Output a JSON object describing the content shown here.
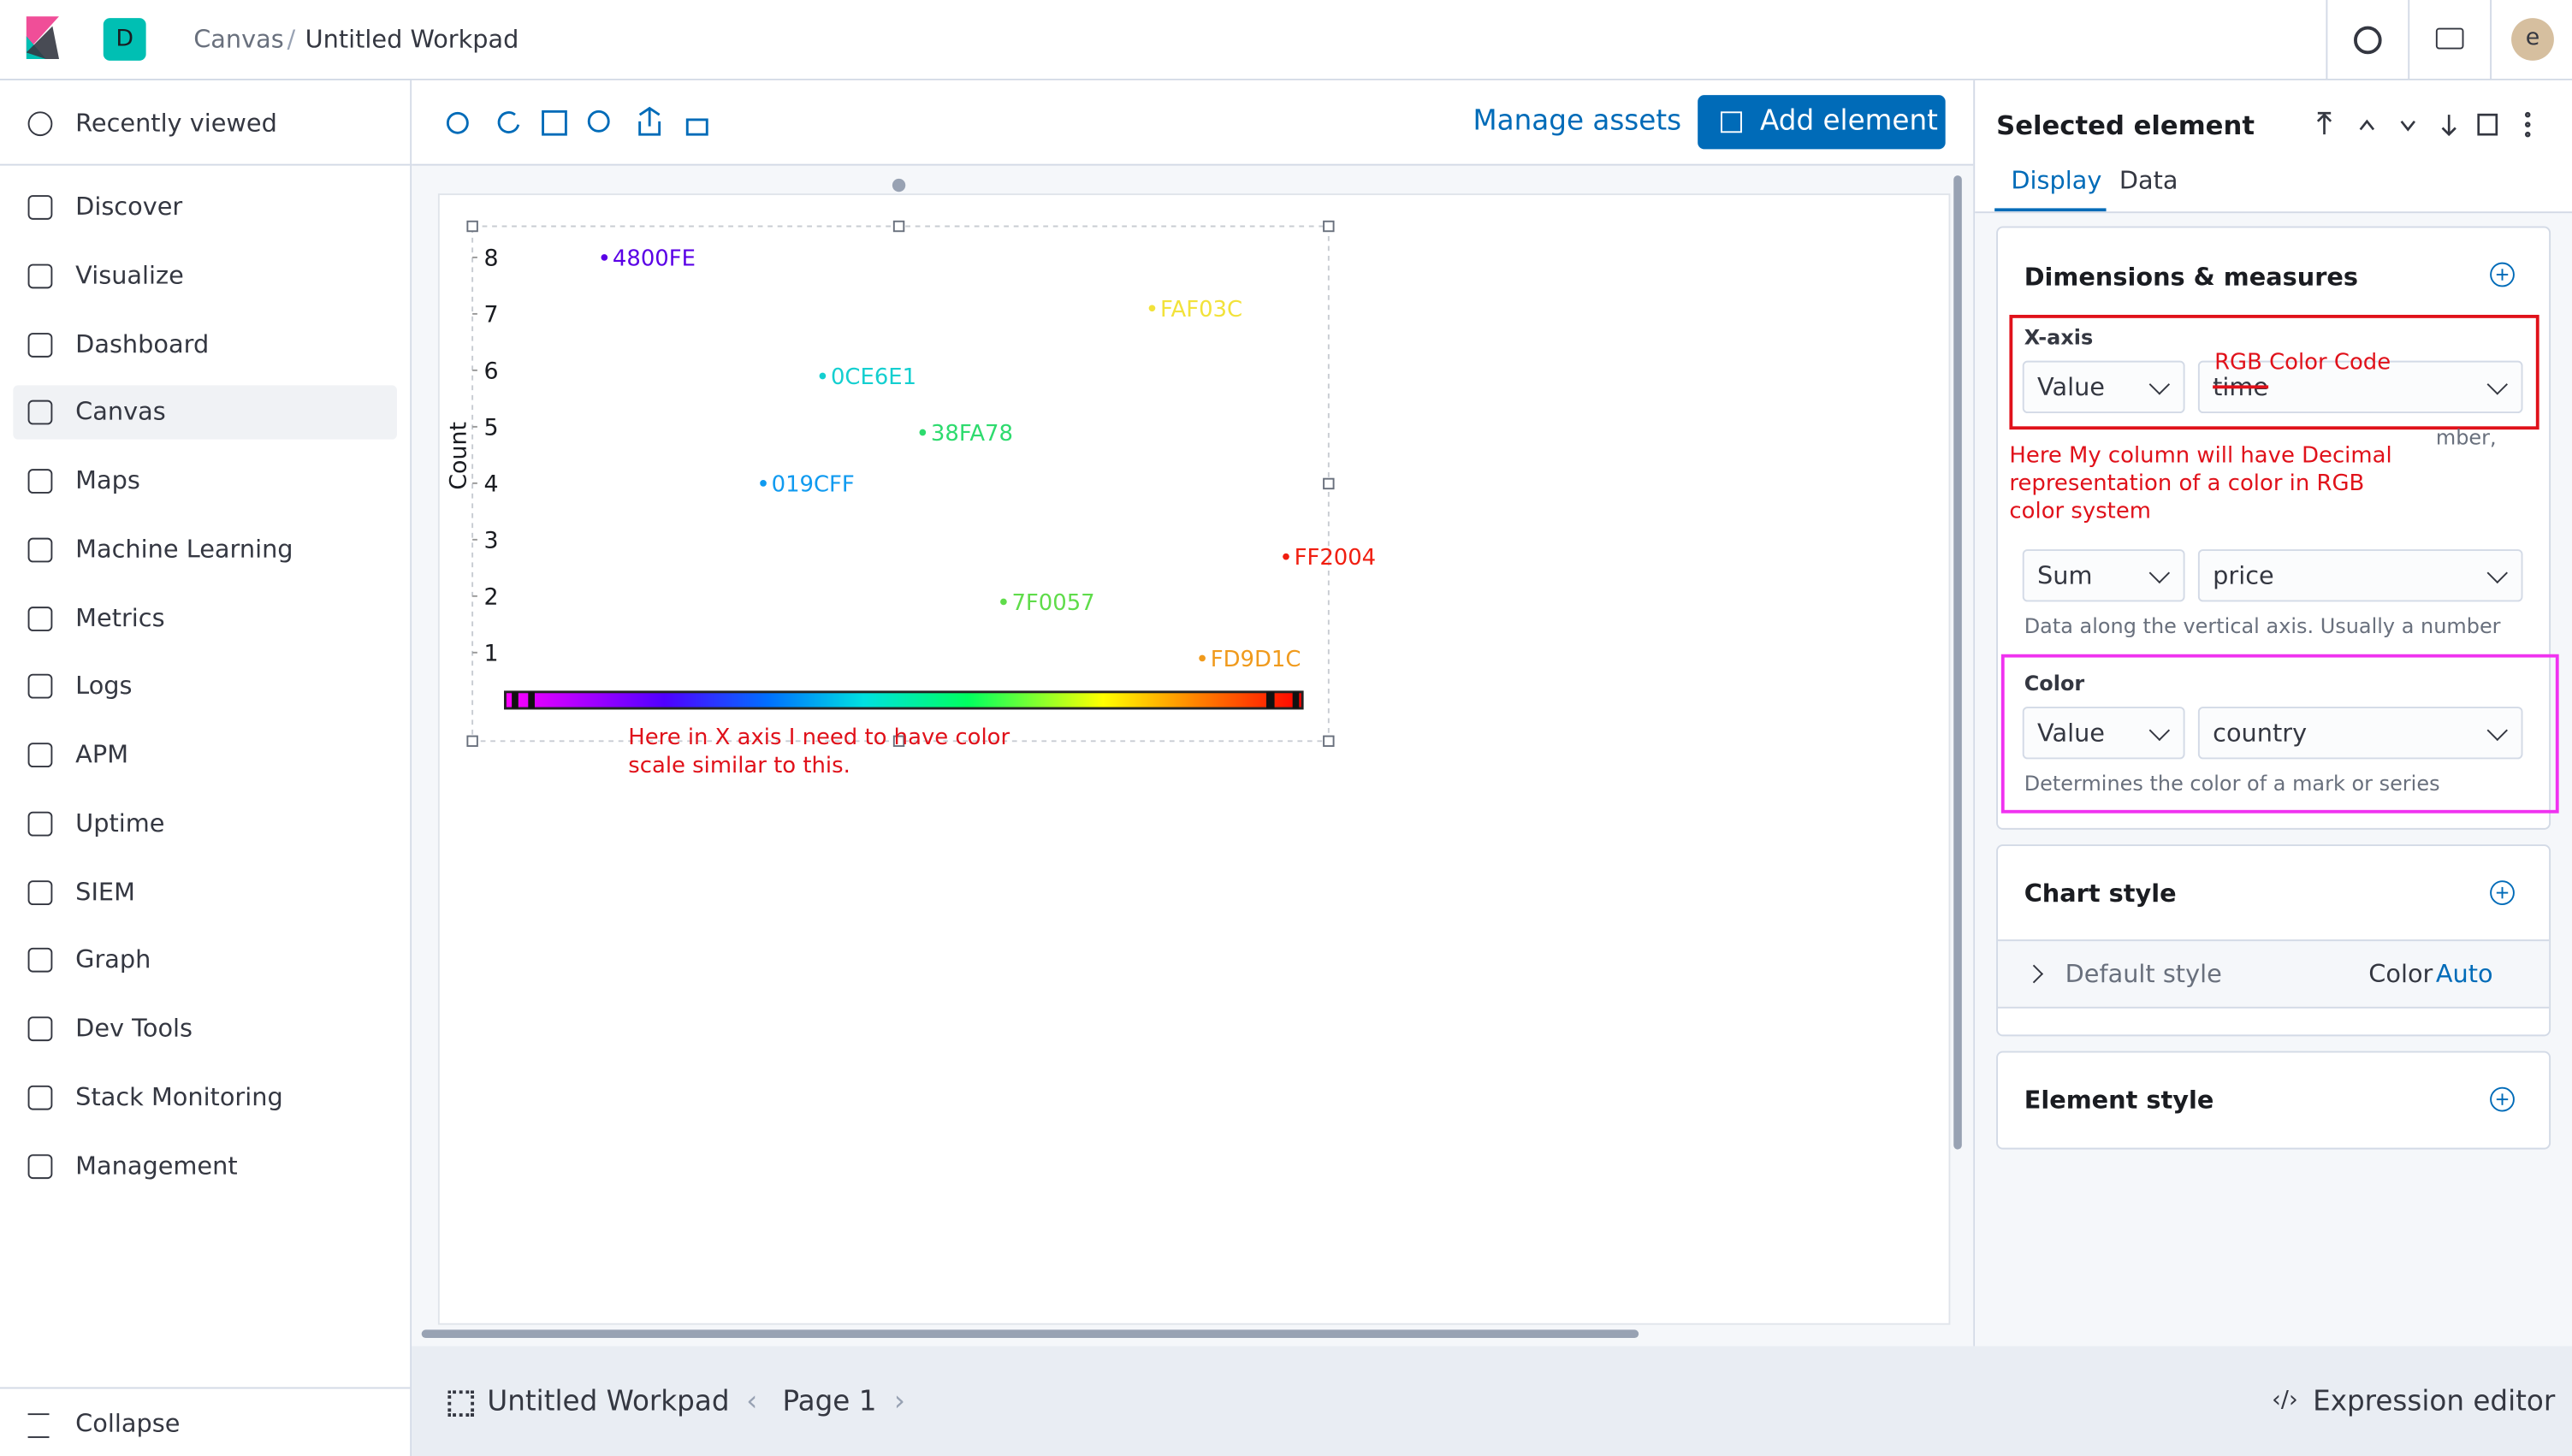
{
  "header": {
    "badge": "D",
    "breadcrumbs": [
      "Canvas",
      "Untitled Workpad"
    ],
    "avatar": "e"
  },
  "nav": {
    "recent": "Recently viewed",
    "items": [
      "Discover",
      "Visualize",
      "Dashboard",
      "Canvas",
      "Maps",
      "Machine Learning",
      "Metrics",
      "Logs",
      "APM",
      "Uptime",
      "SIEM",
      "Graph",
      "Dev Tools",
      "Stack Monitoring",
      "Management"
    ],
    "collapse": "Collapse"
  },
  "toolbar": {
    "manage": "Manage assets",
    "add": "Add element"
  },
  "chart_data": {
    "type": "scatter",
    "ylabel": "Count",
    "ylim": [
      0.5,
      8.3
    ],
    "yticks": [
      1,
      2,
      3,
      4,
      5,
      6,
      7,
      8
    ],
    "points": [
      {
        "label": "4800FE",
        "y": 8,
        "color": "#5a00e6"
      },
      {
        "label": "FAF03C",
        "y": 7.1,
        "color": "#f2e23a"
      },
      {
        "label": "0CE6E1",
        "y": 5.9,
        "color": "#14cfd0"
      },
      {
        "label": "38FA78",
        "y": 4.9,
        "color": "#2edb6e"
      },
      {
        "label": "019CFF",
        "y": 4,
        "color": "#0f9af0"
      },
      {
        "label": "FF2004",
        "y": 2.7,
        "color": "#f01e10"
      },
      {
        "label": "7F0057",
        "y": 1.9,
        "color": "#5fdc4a"
      },
      {
        "label": "FD9D1C",
        "y": 0.9,
        "color": "#f09a1c"
      }
    ],
    "annotation": "Here in X axis I need to have color scale similar to this."
  },
  "panel": {
    "title": "Selected element",
    "tabs": [
      "Display",
      "Data"
    ],
    "dimensions": {
      "title": "Dimensions & measures",
      "xaxis": "X-axis",
      "xfunc": "Value",
      "xfield": "time",
      "xnote": "RGB Color Code",
      "fragment": "mber,",
      "note": "Here My column will have Decimal representation of a color in RGB color system",
      "yfunc": "Sum",
      "yfield": "price",
      "yhelp": "Data along the vertical axis. Usually a number",
      "color": "Color",
      "cfunc": "Value",
      "cfield": "country",
      "chelp": "Determines the color of a mark or series"
    },
    "chart_style": {
      "title": "Chart style",
      "default": "Default style",
      "color": "Color",
      "auto": "Auto"
    },
    "element_style": "Element style"
  },
  "footer": {
    "workpad": "Untitled Workpad",
    "page": "Page 1",
    "expression": "Expression editor"
  }
}
